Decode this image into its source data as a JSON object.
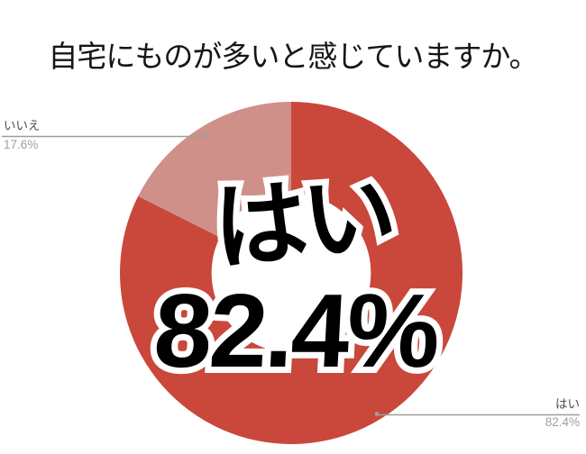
{
  "title": "自宅にものが多いと感じていますか。",
  "chart_data": {
    "type": "pie",
    "title": "自宅にものが多いと感じていますか。",
    "labels": [
      "はい",
      "いいえ"
    ],
    "values": [
      82.4,
      17.6
    ],
    "unit": "%",
    "colors": [
      "#c9483b",
      "#cf9089"
    ],
    "donut": true,
    "donut_hole_ratio": 0.465,
    "hole_color": "#ffffff",
    "start_angle_deg": 0,
    "direction": "clockwise",
    "legend_position": "none",
    "center_label": {
      "line1": "はい",
      "line2": "82.4%"
    },
    "callouts": [
      {
        "label": "いいえ",
        "value": "17.6%",
        "position": "top-left"
      },
      {
        "label": "はい",
        "value": "82.4%",
        "position": "bottom-right"
      }
    ],
    "leader_line_color": "#9e9e9e",
    "background_color": "#ffffff",
    "title_color": "#161616",
    "callout_label_color": "#4c4c4c",
    "callout_value_color": "#9f9f9f"
  }
}
